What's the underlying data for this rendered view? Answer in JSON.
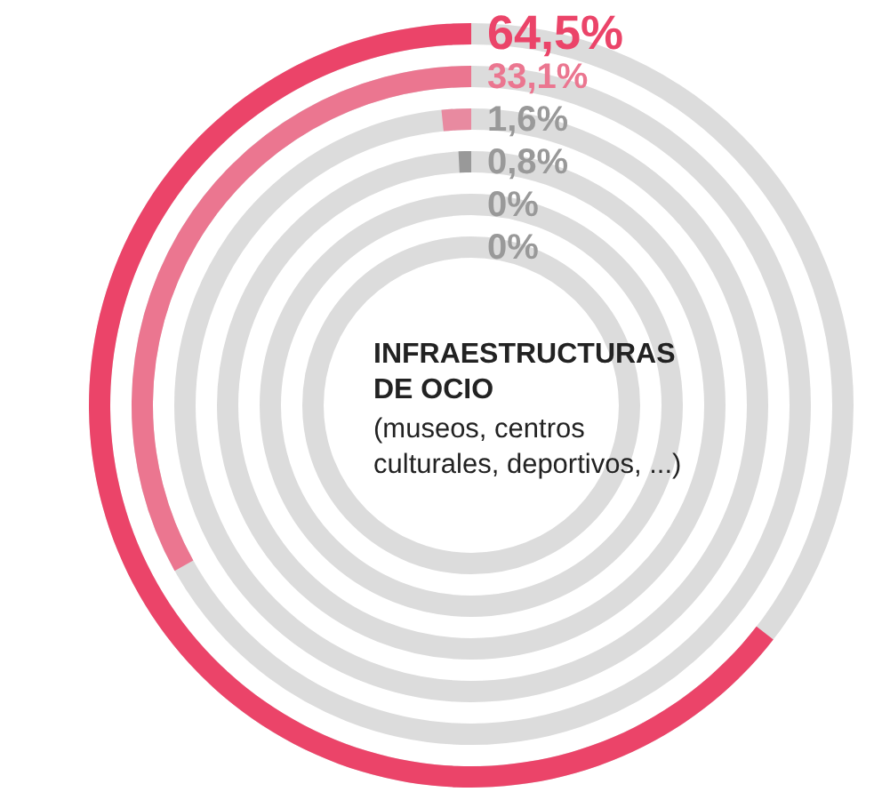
{
  "chart_data": {
    "type": "other",
    "title": "INFRAESTRUCTURAS\nDE OCIO",
    "subtitle": "(museos, centros\nculturales, deportivos, ...)",
    "categories": [
      null,
      null,
      null,
      null,
      null,
      null
    ],
    "values": [
      64.5,
      33.1,
      1.6,
      0.8,
      0,
      0
    ],
    "value_labels": [
      "64,5%",
      "33,1%",
      "1,6%",
      "0,8%",
      "0%",
      "0%"
    ],
    "colors": [
      "#eb4469",
      "#eb7690",
      "#e88aa0",
      "#999999",
      "#999999",
      "#999999"
    ],
    "legend": false
  }
}
